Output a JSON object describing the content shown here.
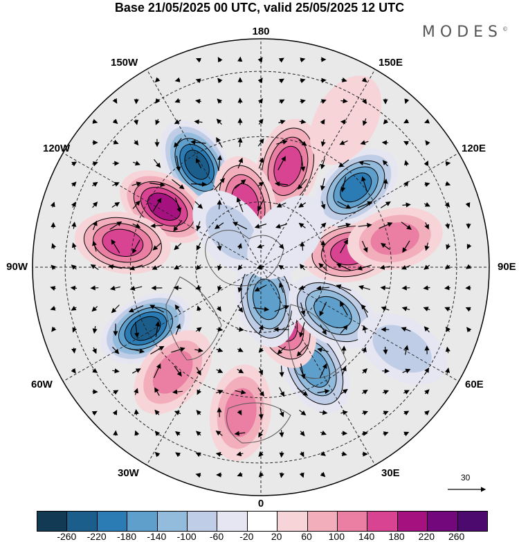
{
  "title": "Base 21/05/2025 00 UTC, valid 25/05/2025 12 UTC",
  "brand": "MODES",
  "brand_mark": "©",
  "lon_labels": {
    "top": "180",
    "bottom": "0",
    "left": "90W",
    "right": "90E",
    "nw_upper": "150W",
    "nw_lower": "120W",
    "ne_upper": "150E",
    "ne_lower": "120E",
    "sw_upper": "60W",
    "sw_lower": "30W",
    "se_upper": "60E",
    "se_lower": "30E"
  },
  "vector_scale": {
    "label": "30"
  },
  "colorbar": {
    "ticks": [
      "-260",
      "-220",
      "-180",
      "-140",
      "-100",
      "-60",
      "-20",
      "20",
      "60",
      "100",
      "140",
      "180",
      "220",
      "260"
    ],
    "colors": [
      "#123a55",
      "#1b5e8c",
      "#2b7bb4",
      "#5e9fcb",
      "#93bbdc",
      "#c0cde6",
      "#e6e6f2",
      "#ffffff",
      "#f7d4d8",
      "#f2aebb",
      "#ea7fa3",
      "#d84492",
      "#a5127f",
      "#72087b",
      "#4c0a6e"
    ]
  },
  "anomalies": [
    {
      "lat": 53,
      "lon": -148,
      "value": -240
    },
    {
      "lat": 55,
      "lon": -122,
      "value": 180
    },
    {
      "lat": 47,
      "lon": -100,
      "value": 160
    },
    {
      "lat": 50,
      "lon": -62,
      "value": -240
    },
    {
      "lat": 48,
      "lon": -40,
      "value": 130
    },
    {
      "lat": 45,
      "lon": -8,
      "value": 110
    },
    {
      "lat": 55,
      "lon": 28,
      "value": -170
    },
    {
      "lat": 72,
      "lon": 22,
      "value": 160
    },
    {
      "lat": 80,
      "lon": 10,
      "value": -140
    },
    {
      "lat": 64,
      "lon": 58,
      "value": -160
    },
    {
      "lat": 62,
      "lon": 100,
      "value": 160
    },
    {
      "lat": 48,
      "lon": 102,
      "value": 110
    },
    {
      "lat": 52,
      "lon": 130,
      "value": -180
    },
    {
      "lat": 58,
      "lon": 165,
      "value": 150
    },
    {
      "lat": 70,
      "lon": -166,
      "value": 140
    },
    {
      "lat": 76,
      "lon": -140,
      "value": -70
    },
    {
      "lat": 78,
      "lon": 140,
      "value": -50
    },
    {
      "lat": 40,
      "lon": 60,
      "value": -70
    },
    {
      "lat": 38,
      "lon": 150,
      "value": 40
    }
  ]
}
